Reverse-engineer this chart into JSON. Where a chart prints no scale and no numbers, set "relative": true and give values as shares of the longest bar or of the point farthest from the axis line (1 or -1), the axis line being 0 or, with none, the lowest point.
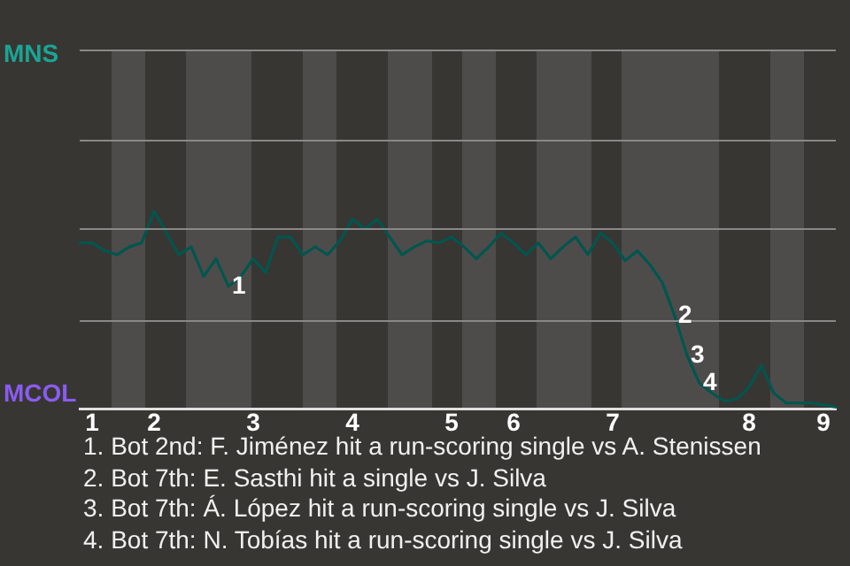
{
  "chart_data": {
    "type": "line",
    "relative": true,
    "categories": [
      null,
      "1",
      null,
      null,
      null,
      null,
      "2",
      null,
      null,
      null,
      null,
      null,
      null,
      null,
      "3",
      null,
      null,
      null,
      null,
      null,
      null,
      null,
      "4",
      null,
      null,
      null,
      null,
      null,
      null,
      null,
      "5",
      null,
      null,
      null,
      null,
      "6",
      null,
      null,
      null,
      null,
      null,
      null,
      null,
      "7",
      null,
      null,
      null,
      null,
      null,
      null,
      null,
      null,
      null,
      null,
      "8",
      null,
      null,
      null,
      null,
      null,
      "9",
      null
    ],
    "values": [
      0.84,
      0.84,
      0.8,
      0.78,
      0.82,
      0.84,
      1,
      0.89,
      0.78,
      0.82,
      0.67,
      0.76,
      0.62,
      0.67,
      0.76,
      0.69,
      0.87,
      0.87,
      0.78,
      0.82,
      0.78,
      0.85,
      0.96,
      0.91,
      0.96,
      0.87,
      0.78,
      0.82,
      0.85,
      0.84,
      0.87,
      0.82,
      0.76,
      0.82,
      0.89,
      0.84,
      0.78,
      0.84,
      0.76,
      0.82,
      0.87,
      0.78,
      0.89,
      0.84,
      0.75,
      0.8,
      0.73,
      0.64,
      0.47,
      0.27,
      0.13,
      0.08,
      0.04,
      0.05,
      0.11,
      0.22,
      0.08,
      0.03,
      0.03,
      0.03,
      0.02,
      0.01
    ],
    "color": "#00564f",
    "marker": "none",
    "line_style": "solid",
    "ref_lines": [
      {
        "axis": "y",
        "value": 0.45,
        "color": "#8a8886"
      },
      {
        "axis": "y",
        "value": 0.91,
        "color": "#8a8886"
      },
      {
        "axis": "y",
        "value": 1.36,
        "color": "#8a8886"
      }
    ],
    "annotations": [
      "MNS",
      "MCOL",
      {
        "text": "1",
        "y": 0.62
      },
      {
        "text": "2",
        "y": 0.47
      },
      {
        "text": "3",
        "y": 0.27
      },
      {
        "text": "4",
        "y": 0.13
      },
      "1. Bot 2nd: F. Jiménez hit a run-scoring single vs A. Stenissen",
      "2. Bot 7th: E. Sasthi hit a single vs J. Silva",
      "3. Bot 7th: Á. López hit a run-scoring single vs J. Silva",
      "4. Bot 7th: N. Tobías hit a run-scoring single vs J. Silva"
    ]
  }
}
